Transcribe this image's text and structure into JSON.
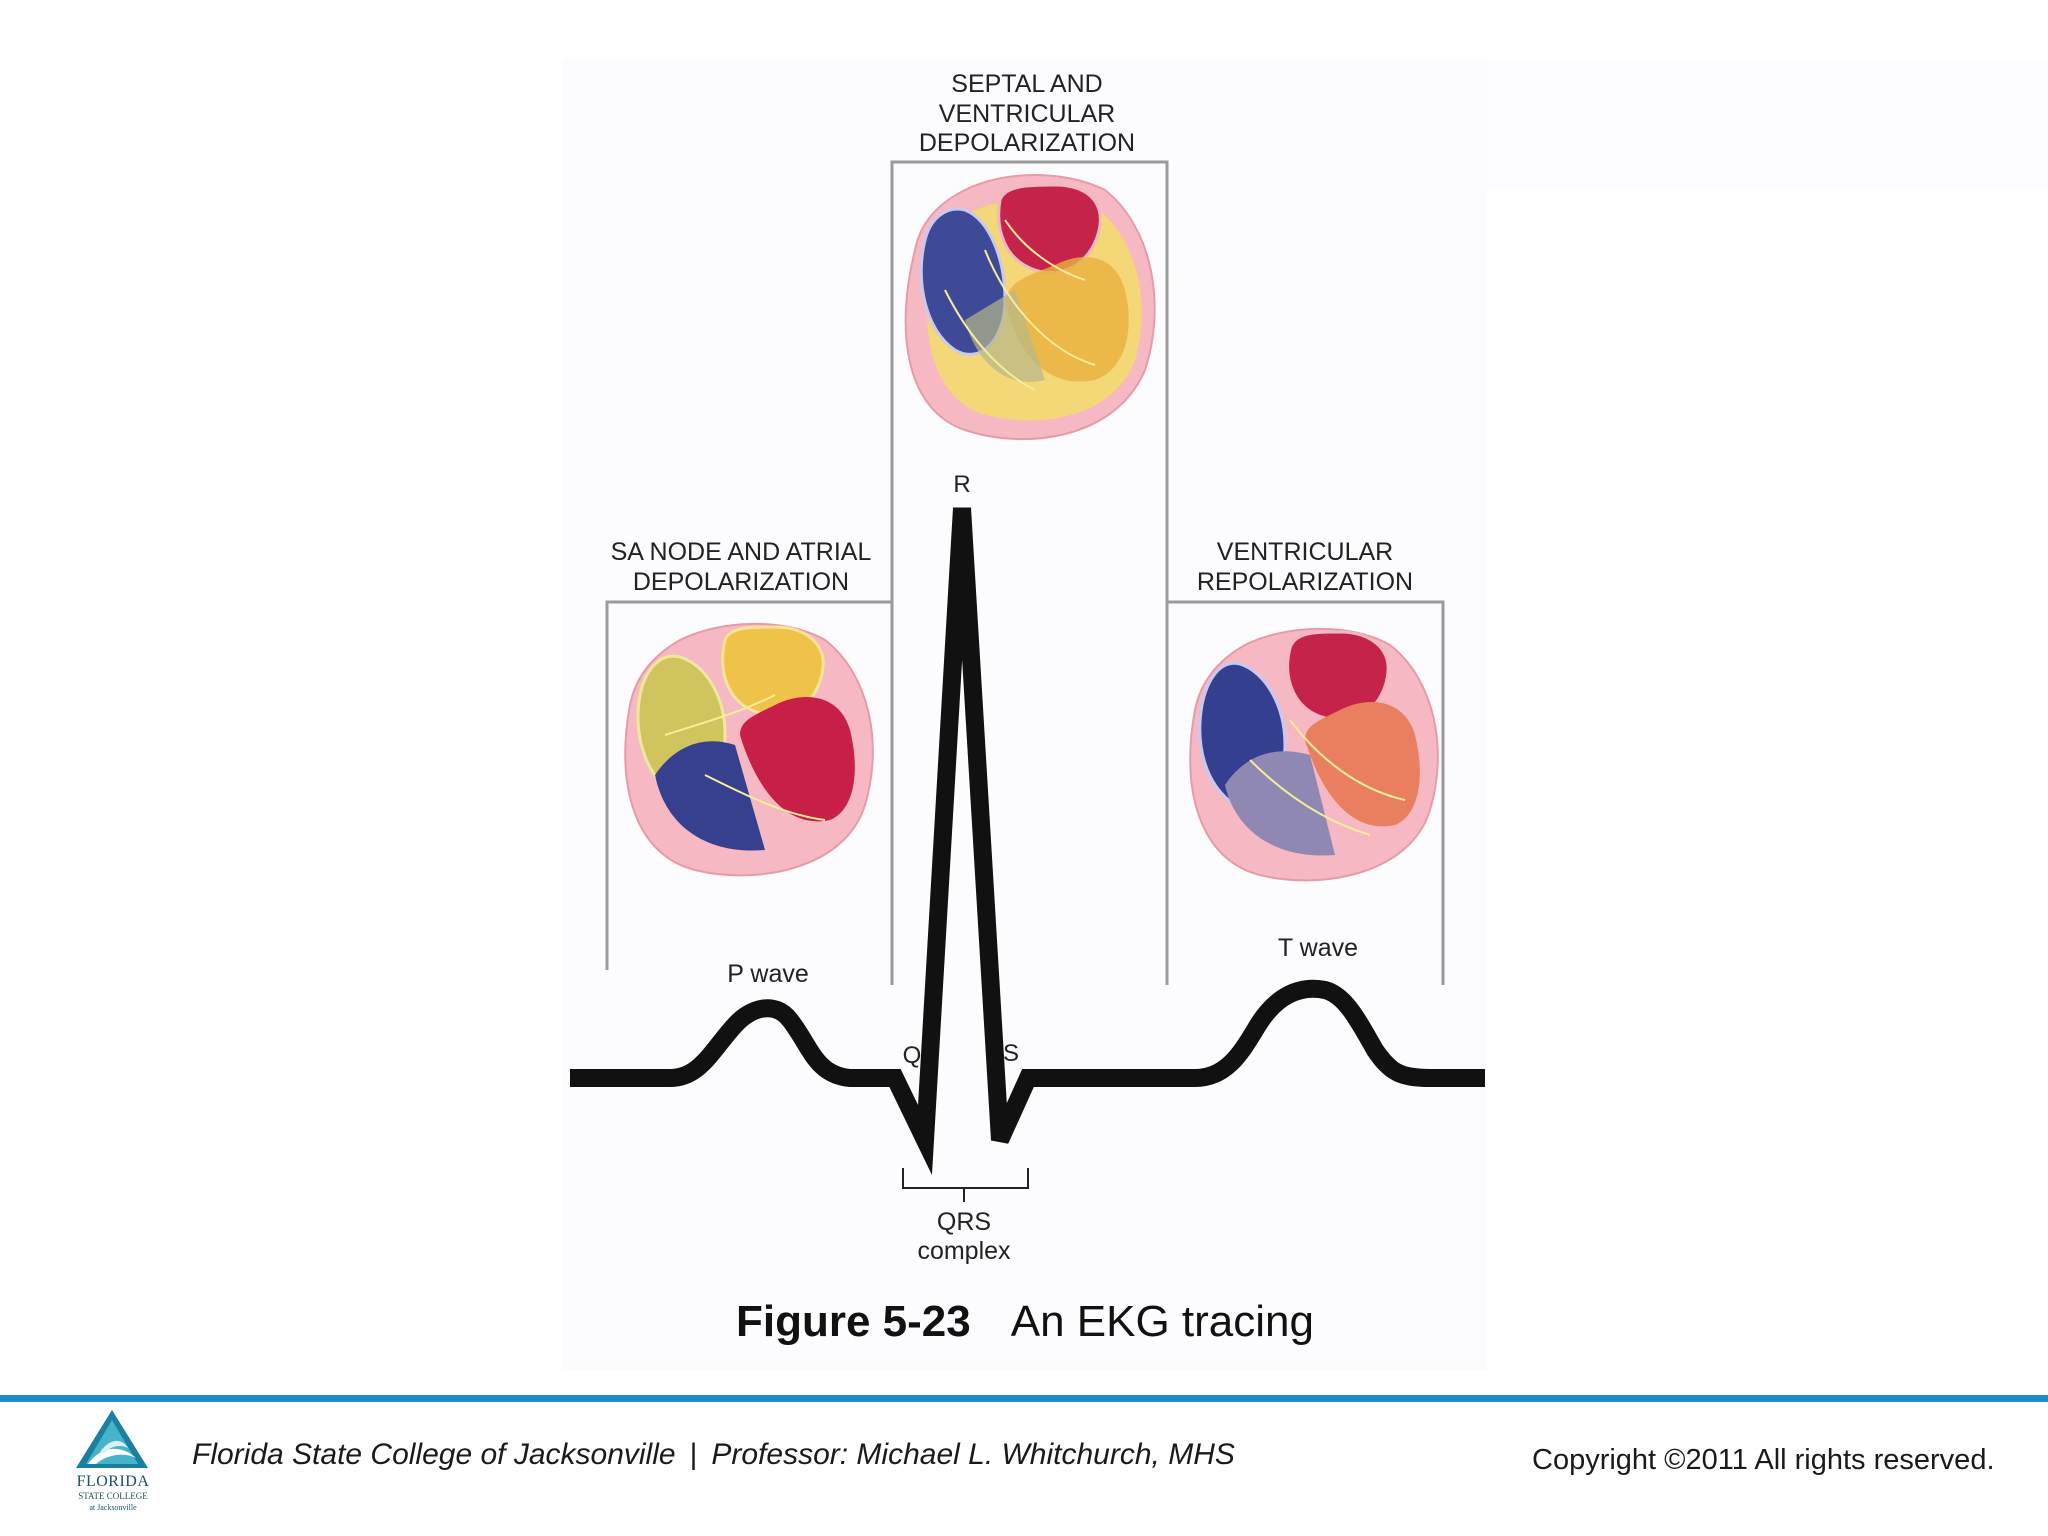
{
  "diagram": {
    "labels": {
      "septal_line1": "SEPTAL AND",
      "septal_line2": "VENTRICULAR",
      "septal_line3": "DEPOLARIZATION",
      "sa_line1": "SA NODE AND ATRIAL",
      "sa_line2": "DEPOLARIZATION",
      "vr_line1": "VENTRICULAR",
      "vr_line2": "REPOLARIZATION",
      "r": "R",
      "q": "Q",
      "s": "S",
      "p_wave": "P wave",
      "t_wave": "T wave",
      "qrs_line1": "QRS",
      "qrs_line2": "complex"
    },
    "caption_bold": "Figure 5-23",
    "caption_text": "An EKG tracing"
  },
  "footer": {
    "institution": "Florida State College of Jacksonville",
    "separator": "|",
    "professor": "Professor: Michael L. Whitchurch, MHS",
    "copyright": "Copyright ©2011  All rights reserved.",
    "logo_line1": "FLORIDA",
    "logo_line2": "STATE COLLEGE",
    "logo_line3": "at Jacksonville"
  },
  "colors": {
    "accent_rule": "#1f8cc8",
    "trace": "#111111",
    "box_outline": "#9a9a9a"
  }
}
